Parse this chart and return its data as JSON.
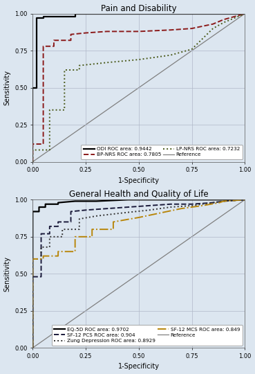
{
  "plot1": {
    "title": "Pain and Disability",
    "curves": [
      {
        "label": "ODI ROC area: 0.9442",
        "color": "#000000",
        "linestyle": "solid",
        "linewidth": 1.6,
        "x": [
          0.0,
          0.0,
          0.02,
          0.02,
          0.05,
          0.05,
          0.2,
          0.2,
          0.85,
          0.85,
          1.0
        ],
        "y": [
          0.0,
          0.5,
          0.5,
          0.97,
          0.97,
          0.98,
          0.98,
          1.0,
          1.0,
          1.0,
          1.0
        ]
      },
      {
        "label": "BP-NRS ROC area: 0.7805",
        "color": "#8b1a1a",
        "linestyle": "dashed",
        "linewidth": 1.4,
        "x": [
          0.0,
          0.0,
          0.05,
          0.05,
          0.1,
          0.1,
          0.18,
          0.18,
          0.25,
          0.35,
          0.5,
          0.65,
          0.75,
          0.85,
          0.9,
          1.0
        ],
        "y": [
          0.0,
          0.12,
          0.12,
          0.78,
          0.78,
          0.82,
          0.82,
          0.86,
          0.87,
          0.88,
          0.88,
          0.89,
          0.9,
          0.93,
          0.96,
          1.0
        ]
      },
      {
        "label": "LP-NRS ROC area: 0.7232",
        "color": "#4a5a1a",
        "linestyle": "dotted",
        "linewidth": 1.4,
        "x": [
          0.0,
          0.0,
          0.08,
          0.08,
          0.15,
          0.15,
          0.22,
          0.22,
          0.35,
          0.5,
          0.65,
          0.75,
          0.85,
          0.9,
          1.0
        ],
        "y": [
          0.0,
          0.08,
          0.08,
          0.35,
          0.35,
          0.62,
          0.62,
          0.65,
          0.67,
          0.69,
          0.72,
          0.76,
          0.9,
          0.94,
          1.0
        ]
      }
    ],
    "reference": {
      "color": "#808080",
      "linestyle": "solid",
      "linewidth": 0.9
    },
    "xlabel": "1-Specificity",
    "ylabel": "Sensitivity",
    "xlim": [
      0.0,
      1.0
    ],
    "ylim": [
      0.0,
      1.0
    ],
    "xticks": [
      0.0,
      0.25,
      0.5,
      0.75,
      1.0
    ],
    "yticks": [
      0.0,
      0.25,
      0.5,
      0.75,
      1.0
    ],
    "legend_order": [
      0,
      1,
      2,
      3
    ],
    "legend_ncol": 2
  },
  "plot2": {
    "title": "General Health and Quality of Life",
    "curves": [
      {
        "label": "EQ-5D ROC area: 0.9702",
        "color": "#000000",
        "linestyle": "solid",
        "linewidth": 1.6,
        "x": [
          0.0,
          0.0,
          0.03,
          0.03,
          0.06,
          0.06,
          0.12,
          0.12,
          0.2,
          0.3,
          0.45,
          0.6,
          0.75,
          0.9,
          1.0
        ],
        "y": [
          0.0,
          0.92,
          0.92,
          0.95,
          0.95,
          0.97,
          0.97,
          0.98,
          0.99,
          0.99,
          1.0,
          1.0,
          1.0,
          1.0,
          1.0
        ]
      },
      {
        "label": "SF-12 PCS ROC area: 0.904",
        "color": "#1a1a3a",
        "linestyle": "dashed",
        "linewidth": 1.4,
        "x": [
          0.0,
          0.0,
          0.04,
          0.04,
          0.08,
          0.08,
          0.12,
          0.12,
          0.18,
          0.18,
          0.25,
          0.35,
          0.45,
          0.55,
          0.65,
          0.75,
          0.85,
          0.9,
          1.0
        ],
        "y": [
          0.0,
          0.48,
          0.48,
          0.77,
          0.77,
          0.82,
          0.82,
          0.85,
          0.85,
          0.92,
          0.93,
          0.94,
          0.95,
          0.96,
          0.97,
          0.97,
          0.98,
          0.99,
          1.0
        ]
      },
      {
        "label": "Zung Depression ROC area: 0.8929",
        "color": "#333333",
        "linestyle": "dotted",
        "linewidth": 1.4,
        "x": [
          0.0,
          0.0,
          0.04,
          0.04,
          0.08,
          0.08,
          0.14,
          0.14,
          0.22,
          0.22,
          0.3,
          0.42,
          0.55,
          0.65,
          0.75,
          0.85,
          0.9,
          1.0
        ],
        "y": [
          0.0,
          0.6,
          0.6,
          0.68,
          0.68,
          0.75,
          0.75,
          0.8,
          0.8,
          0.87,
          0.89,
          0.91,
          0.93,
          0.95,
          0.96,
          0.98,
          0.99,
          1.0
        ]
      },
      {
        "label": "SF-12 MCS ROC area: 0.849",
        "color": "#b8860b",
        "linestyle": "dashdot",
        "linewidth": 1.4,
        "x": [
          0.0,
          0.0,
          0.05,
          0.05,
          0.12,
          0.12,
          0.2,
          0.2,
          0.28,
          0.28,
          0.38,
          0.38,
          0.5,
          0.6,
          0.7,
          0.8,
          0.88,
          0.9,
          1.0
        ],
        "y": [
          0.0,
          0.6,
          0.6,
          0.62,
          0.62,
          0.65,
          0.65,
          0.75,
          0.75,
          0.8,
          0.8,
          0.85,
          0.88,
          0.91,
          0.94,
          0.96,
          0.98,
          0.99,
          1.0
        ]
      }
    ],
    "reference": {
      "color": "#808080",
      "linestyle": "solid",
      "linewidth": 0.9
    },
    "xlabel": "1-Specificity",
    "ylabel": "Sensitivity",
    "xlim": [
      0.0,
      1.0
    ],
    "ylim": [
      0.0,
      1.0
    ],
    "xticks": [
      0.0,
      0.25,
      0.5,
      0.75,
      1.0
    ],
    "yticks": [
      0.0,
      0.25,
      0.5,
      0.75,
      1.0
    ],
    "legend_ncol": 2
  },
  "background_color": "#dce6f0",
  "plot_bg_color": "#dce6f0",
  "grid_color": "#b0b8c8",
  "tick_labelsize": 6.0,
  "axis_labelsize": 7.0,
  "title_fontsize": 8.5,
  "legend_fontsize": 5.2
}
